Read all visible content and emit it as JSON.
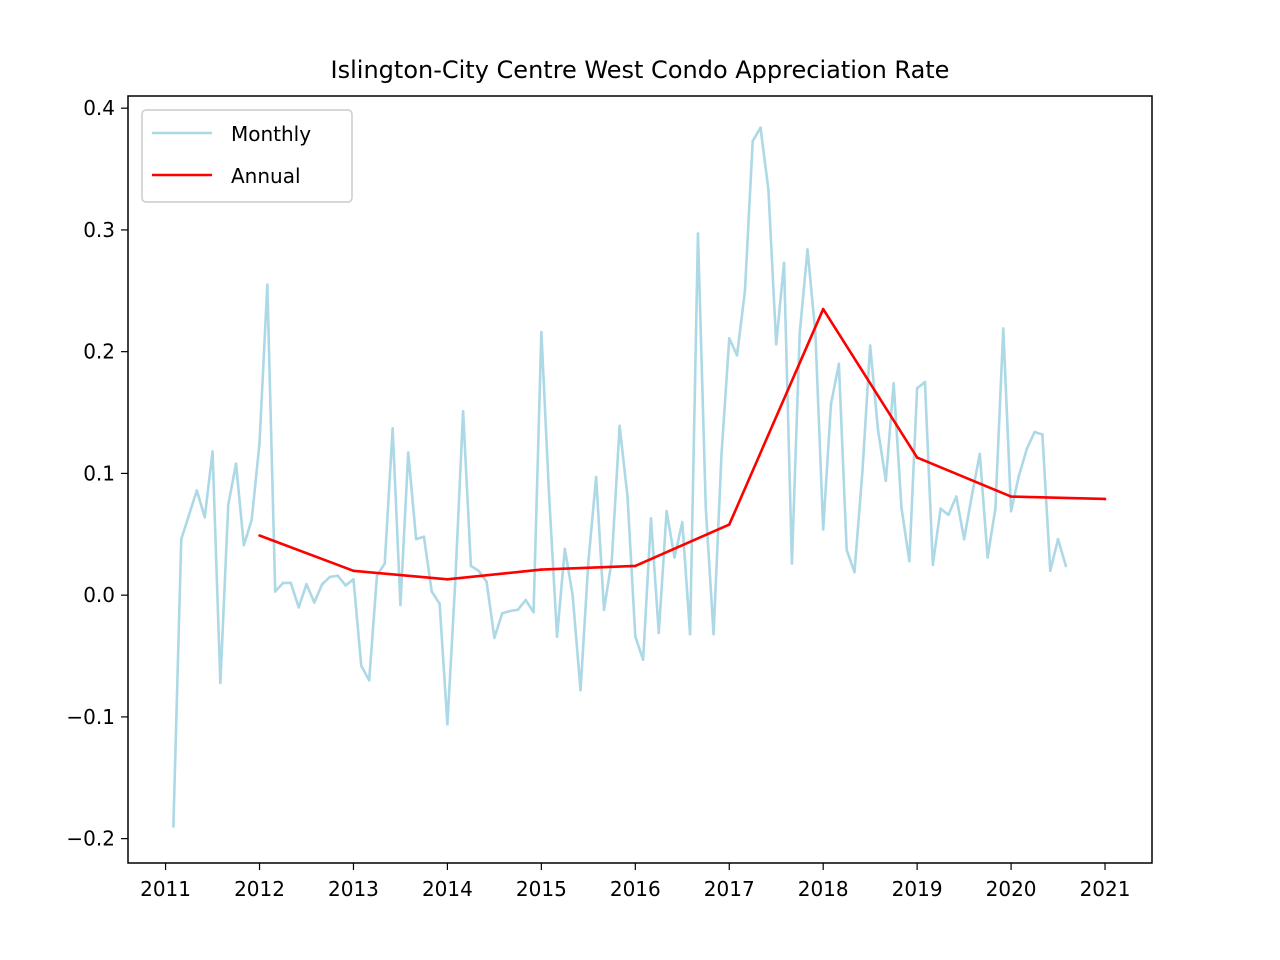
{
  "chart_data": {
    "type": "line",
    "title": "Islington-City Centre West Condo Appreciation Rate",
    "xlabel": "",
    "ylabel": "",
    "xlim": [
      2010.6,
      2021.5
    ],
    "ylim": [
      -0.22,
      0.41
    ],
    "x_ticks": [
      2011,
      2012,
      2013,
      2014,
      2015,
      2016,
      2017,
      2018,
      2019,
      2020,
      2021
    ],
    "x_tick_labels": [
      "2011",
      "2012",
      "2013",
      "2014",
      "2015",
      "2016",
      "2017",
      "2018",
      "2019",
      "2020",
      "2021"
    ],
    "y_ticks": [
      -0.2,
      -0.1,
      0.0,
      0.1,
      0.2,
      0.3,
      0.4
    ],
    "y_tick_labels": [
      "−0.2",
      "−0.1",
      "0.0",
      "0.1",
      "0.2",
      "0.3",
      "0.4"
    ],
    "grid": false,
    "legend_position": "top-left",
    "series": [
      {
        "name": "Monthly",
        "color": "#add8e6",
        "x": [
          2011.083,
          2011.167,
          2011.25,
          2011.333,
          2011.417,
          2011.5,
          2011.583,
          2011.667,
          2011.75,
          2011.833,
          2011.917,
          2012.0,
          2012.083,
          2012.167,
          2012.25,
          2012.333,
          2012.417,
          2012.5,
          2012.583,
          2012.667,
          2012.75,
          2012.833,
          2012.917,
          2013.0,
          2013.083,
          2013.167,
          2013.25,
          2013.333,
          2013.417,
          2013.5,
          2013.583,
          2013.667,
          2013.75,
          2013.833,
          2013.917,
          2014.0,
          2014.083,
          2014.167,
          2014.25,
          2014.333,
          2014.417,
          2014.5,
          2014.583,
          2014.667,
          2014.75,
          2014.833,
          2014.917,
          2015.0,
          2015.083,
          2015.167,
          2015.25,
          2015.333,
          2015.417,
          2015.5,
          2015.583,
          2015.667,
          2015.75,
          2015.833,
          2015.917,
          2016.0,
          2016.083,
          2016.167,
          2016.25,
          2016.333,
          2016.417,
          2016.5,
          2016.583,
          2016.667,
          2016.75,
          2016.833,
          2016.917,
          2017.0,
          2017.083,
          2017.167,
          2017.25,
          2017.333,
          2017.417,
          2017.5,
          2017.583,
          2017.667,
          2017.75,
          2017.833,
          2017.917,
          2018.0,
          2018.083,
          2018.167,
          2018.25,
          2018.333,
          2018.417,
          2018.5,
          2018.583,
          2018.667,
          2018.75,
          2018.833,
          2018.917,
          2019.0,
          2019.083,
          2019.167,
          2019.25,
          2019.333,
          2019.417,
          2019.5,
          2019.583,
          2019.667,
          2019.75,
          2019.833,
          2019.917,
          2020.0,
          2020.083,
          2020.167,
          2020.25,
          2020.333,
          2020.417,
          2020.5,
          2020.583
        ],
        "values": [
          -0.19,
          0.046,
          0.066,
          0.086,
          0.064,
          0.118,
          -0.072,
          0.074,
          0.108,
          0.041,
          0.062,
          0.125,
          0.255,
          0.003,
          0.01,
          0.01,
          -0.01,
          0.009,
          -0.006,
          0.009,
          0.015,
          0.016,
          0.008,
          0.013,
          -0.058,
          -0.07,
          0.016,
          0.026,
          0.137,
          -0.008,
          0.117,
          0.046,
          0.048,
          0.003,
          -0.007,
          -0.106,
          0.01,
          0.151,
          0.024,
          0.02,
          0.011,
          -0.035,
          -0.015,
          -0.013,
          -0.012,
          -0.004,
          -0.014,
          0.216,
          0.081,
          -0.034,
          0.038,
          0.0,
          -0.078,
          0.027,
          0.097,
          -0.012,
          0.029,
          0.139,
          0.081,
          -0.034,
          -0.053,
          0.063,
          -0.031,
          0.069,
          0.031,
          0.06,
          -0.032,
          0.297,
          0.072,
          -0.032,
          0.115,
          0.211,
          0.197,
          0.25,
          0.373,
          0.384,
          0.333,
          0.206,
          0.273,
          0.026,
          0.215,
          0.284,
          0.215,
          0.054,
          0.157,
          0.19,
          0.037,
          0.019,
          0.101,
          0.205,
          0.136,
          0.094,
          0.174,
          0.072,
          0.028,
          0.17,
          0.175,
          0.025,
          0.071,
          0.066,
          0.081,
          0.046,
          0.082,
          0.116,
          0.031,
          0.071,
          0.219,
          0.069,
          0.098,
          0.12,
          0.134,
          0.132,
          0.02,
          0.046,
          0.024
        ]
      },
      {
        "name": "Annual",
        "color": "#ff0000",
        "x": [
          2012,
          2013,
          2014,
          2015,
          2016,
          2017,
          2018,
          2019,
          2020,
          2021
        ],
        "values": [
          0.049,
          0.02,
          0.013,
          0.021,
          0.024,
          0.058,
          0.235,
          0.113,
          0.081,
          0.079
        ]
      }
    ]
  }
}
